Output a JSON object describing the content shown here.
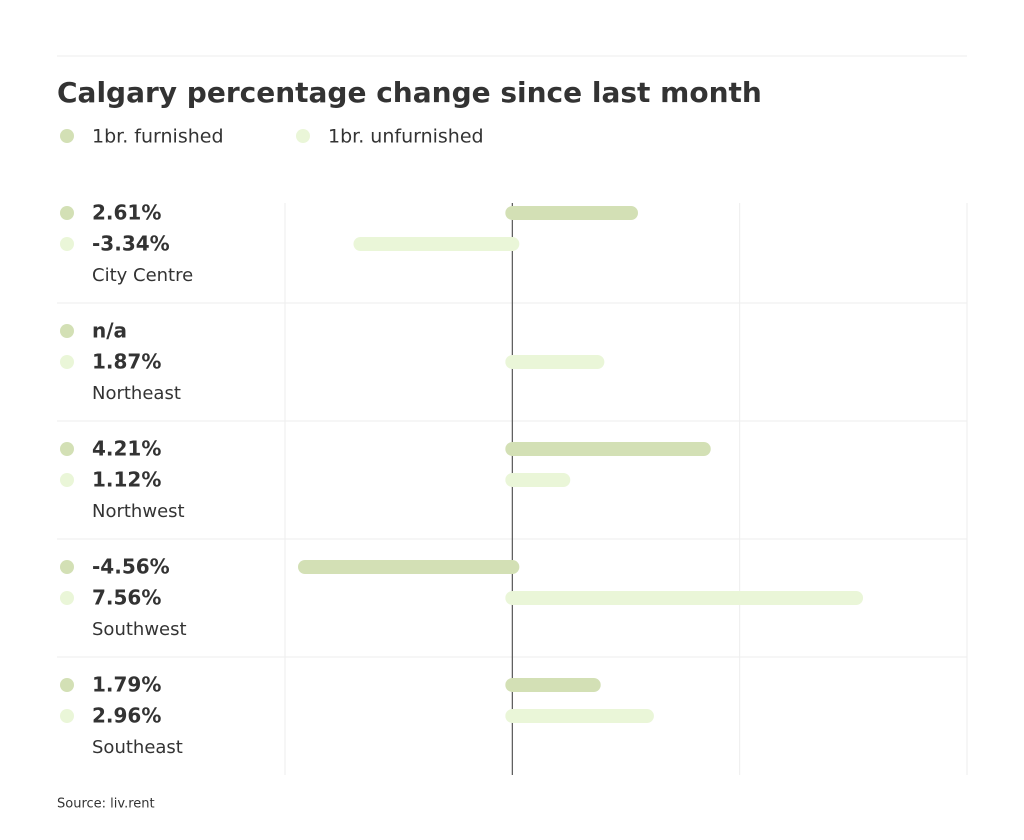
{
  "chart_data": {
    "type": "bar",
    "orientation": "horizontal",
    "title": "Calgary percentage change since last month",
    "categories": [
      "City Centre",
      "Northeast",
      "Northwest",
      "Southwest",
      "Southeast"
    ],
    "series": [
      {
        "name": "1br. furnished",
        "color": "#d3e0b5",
        "values": [
          2.61,
          null,
          4.21,
          -4.56,
          1.79
        ],
        "value_labels": [
          "2.61%",
          "n/a",
          "4.21%",
          "-4.56%",
          "1.79%"
        ]
      },
      {
        "name": "1br. unfurnished",
        "color": "#eaf6d8",
        "values": [
          -3.34,
          1.87,
          1.12,
          7.56,
          2.96
        ],
        "value_labels": [
          "-3.34%",
          "1.87%",
          "1.12%",
          "7.56%",
          "2.96%"
        ]
      }
    ],
    "xlim": [
      -5,
      10
    ],
    "xticks": [
      -5,
      0,
      5,
      10
    ],
    "grid": true,
    "source": "Source: liv.rent"
  }
}
